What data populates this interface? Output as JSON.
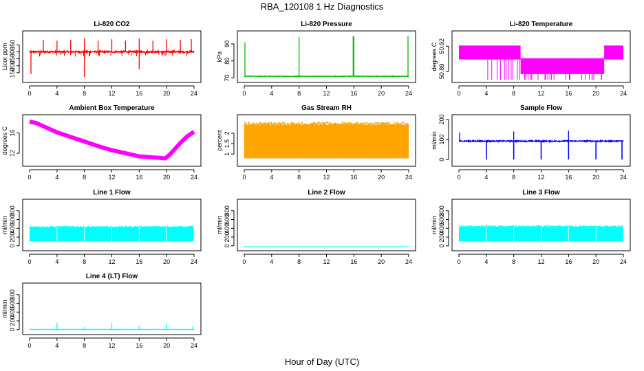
{
  "figure": {
    "title": "RBA_120108  1 Hz Diagnostics",
    "xlabel": "Hour of Day (UTC)"
  },
  "chart_data": [
    {
      "type": "line",
      "title": "Li-820 CO2",
      "ylabel": "Licor ppm",
      "color": "#ff0000",
      "xlim": [
        0,
        24
      ],
      "ylim": [
        100,
        430
      ],
      "xticks": [
        "0",
        "4",
        "8",
        "12",
        "16",
        "20",
        "24"
      ],
      "yticks": [
        150,
        200,
        250,
        300,
        350
      ],
      "shape": "co2",
      "baseline": 300,
      "noise": 12,
      "spikes": [
        [
          0.2,
          140
        ],
        [
          8.0,
          120
        ],
        [
          16.0,
          175
        ],
        [
          2,
          385
        ],
        [
          4,
          380
        ],
        [
          6,
          385
        ],
        [
          8,
          395
        ],
        [
          10,
          380
        ],
        [
          12,
          390
        ],
        [
          14,
          380
        ],
        [
          16,
          395
        ],
        [
          18,
          380
        ],
        [
          20,
          390
        ],
        [
          22,
          385
        ],
        [
          23.6,
          390
        ]
      ]
    },
    {
      "type": "line",
      "title": "Li-820 Pressure",
      "ylabel": "kPa",
      "color": "#00bb00",
      "xlim": [
        0,
        24
      ],
      "ylim": [
        69,
        96
      ],
      "xticks": [
        "0",
        "4",
        "8",
        "12",
        "16",
        "20",
        "24"
      ],
      "yticks": [
        70,
        80,
        90
      ],
      "shape": "pressure",
      "baseline": 71,
      "noise": 0.3,
      "spikes": [
        [
          0.1,
          91
        ],
        [
          8.0,
          94
        ],
        [
          15.9,
          94.5
        ],
        [
          16.0,
          94.5
        ],
        [
          23.9,
          94.5
        ]
      ]
    },
    {
      "type": "line",
      "title": "Li-820 Temperature",
      "ylabel": "degrees C",
      "color": "#ff00ff",
      "xlim": [
        0,
        24
      ],
      "ylim": [
        50.88,
        50.935
      ],
      "xticks": [
        "0",
        "4",
        "8",
        "12",
        "16",
        "20",
        "24"
      ],
      "yticks": [
        50.89,
        50.92
      ],
      "shape": "temperature",
      "levels": [
        50.92,
        50.905,
        50.89
      ]
    },
    {
      "type": "line",
      "title": "Ambient Box Temperature",
      "ylabel": "degrees C",
      "color": "#ff00ff",
      "xlim": [
        0,
        24
      ],
      "ylim": [
        10,
        19
      ],
      "xticks": [
        "0",
        "4",
        "8",
        "12",
        "16",
        "20",
        "24"
      ],
      "yticks": [
        12,
        16
      ],
      "shape": "ambient",
      "x": [
        0,
        1,
        2,
        4,
        6,
        8,
        10,
        12,
        14,
        16,
        17,
        18,
        19,
        19.8,
        20.5,
        22,
        23,
        24
      ],
      "y": [
        18.2,
        17.9,
        17.3,
        16.1,
        15.2,
        14.3,
        13.4,
        12.6,
        12.0,
        11.4,
        11.3,
        11.2,
        11.1,
        11.0,
        11.8,
        14.0,
        15.3,
        16.2
      ]
    },
    {
      "type": "line",
      "title": "Gas Stream RH",
      "ylabel": "percent",
      "color": "#ffa500",
      "xlim": [
        0,
        24
      ],
      "ylim": [
        0.55,
        2.75
      ],
      "xticks": [
        "0",
        "4",
        "8",
        "12",
        "16",
        "20",
        "24"
      ],
      "yticks": [
        1.0,
        1.5,
        2.0
      ],
      "shape": "band",
      "band": [
        0.8,
        2.4
      ]
    },
    {
      "type": "line",
      "title": "Sample Flow",
      "ylabel": "ml/min",
      "color": "#0000ff",
      "xlim": [
        0,
        24
      ],
      "ylim": [
        -20,
        210
      ],
      "xticks": [
        "0",
        "4",
        "8",
        "12",
        "16",
        "20",
        "24"
      ],
      "yticks": [
        0,
        100,
        200
      ],
      "shape": "flow",
      "baseline": 92,
      "noise": 6,
      "dips": [
        4,
        8,
        12,
        16,
        20,
        23.8
      ],
      "dip_to": 0,
      "spikes": [
        [
          0.1,
          135
        ],
        [
          8.0,
          140
        ],
        [
          16.0,
          145
        ]
      ]
    },
    {
      "type": "line",
      "title": "Line 1 Flow",
      "ylabel": "ml/min",
      "color": "#00ffff",
      "xlim": [
        0,
        24
      ],
      "ylim": [
        -50,
        1000
      ],
      "xticks": [
        "0",
        "4",
        "8",
        "12",
        "16",
        "20",
        "24"
      ],
      "yticks": [
        0,
        200,
        400,
        600,
        800
      ],
      "shape": "band",
      "band": [
        100,
        420
      ]
    },
    {
      "type": "line",
      "title": "Line 2 Flow",
      "ylabel": "ml/min",
      "color": "#00ffff",
      "xlim": [
        0,
        24
      ],
      "ylim": [
        -50,
        1000
      ],
      "xticks": [
        "0",
        "4",
        "8",
        "12",
        "16",
        "20",
        "24"
      ],
      "yticks": [
        0,
        200,
        400,
        600,
        800
      ],
      "shape": "flat",
      "value": -20
    },
    {
      "type": "line",
      "title": "Line 3 Flow",
      "ylabel": "ml/min",
      "color": "#00ffff",
      "xlim": [
        0,
        24
      ],
      "ylim": [
        -50,
        1000
      ],
      "xticks": [
        "0",
        "4",
        "8",
        "12",
        "16",
        "20",
        "24"
      ],
      "yticks": [
        0,
        200,
        400,
        600,
        800
      ],
      "shape": "band",
      "band": [
        100,
        430
      ]
    },
    {
      "type": "line",
      "title": "Line 4 (LT) Flow",
      "ylabel": "ml/min",
      "color": "#00ffff",
      "xlim": [
        0,
        24
      ],
      "ylim": [
        -50,
        1000
      ],
      "xticks": [
        "0",
        "4",
        "8",
        "12",
        "16",
        "20",
        "24"
      ],
      "yticks": [
        0,
        200,
        400,
        600,
        800
      ],
      "shape": "flow",
      "baseline": 5,
      "noise": 4,
      "dips": [],
      "dip_to": 0,
      "spikes": [
        [
          4,
          150
        ],
        [
          12,
          150
        ],
        [
          20,
          140
        ],
        [
          8,
          60
        ],
        [
          16,
          80
        ],
        [
          23.8,
          70
        ]
      ]
    }
  ]
}
